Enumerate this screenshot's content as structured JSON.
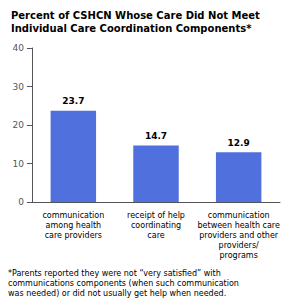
{
  "chart_data": {
    "type": "bar",
    "title": "Percent of CSHCN Whose Care Did Not Meet\nIndividual Care Coordination Components*",
    "categories": [
      "communication\namong health\ncare providers",
      "receipt of help\ncoordinating\ncare",
      "communication\nbetween health care\nproviders and other\nproviders/\nprograms"
    ],
    "values": [
      23.7,
      14.7,
      12.9
    ],
    "ylim": [
      0,
      40
    ],
    "yticks": [
      0,
      10,
      20,
      30,
      40
    ],
    "grid": false,
    "data_labels": true,
    "annotations": [
      "*Parents reported they were not “very satisfied” with\ncommunications components (when such communication\nwas needed) or did not usually get help when needed."
    ]
  }
}
